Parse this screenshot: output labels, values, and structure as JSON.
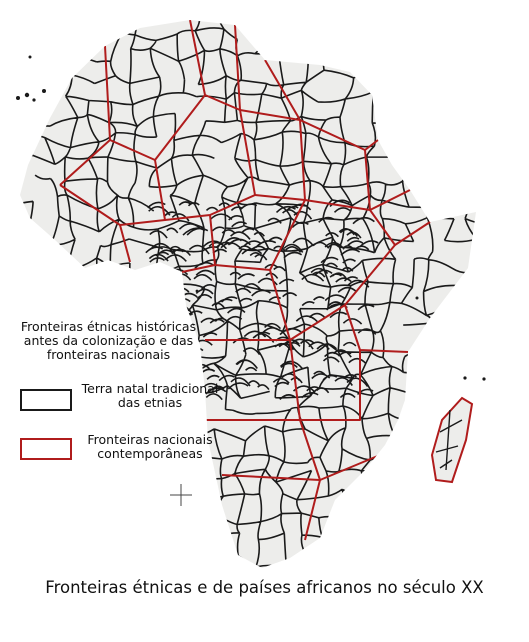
{
  "legend": {
    "title": "Fronteiras étnicas históricas antes da colonização e das fronteiras nacionais",
    "items": [
      {
        "label": "Terra natal tradicional das etnias",
        "color": "#1a1a1a"
      },
      {
        "label": "Fronteiras nacionais contemporâneas",
        "color": "#b01c1c"
      }
    ]
  },
  "caption": "Fronteiras étnicas e de países africanos no século XX",
  "colors": {
    "land": "#ededeb",
    "ethnic": "#1a1a1a",
    "national": "#b01c1c"
  }
}
